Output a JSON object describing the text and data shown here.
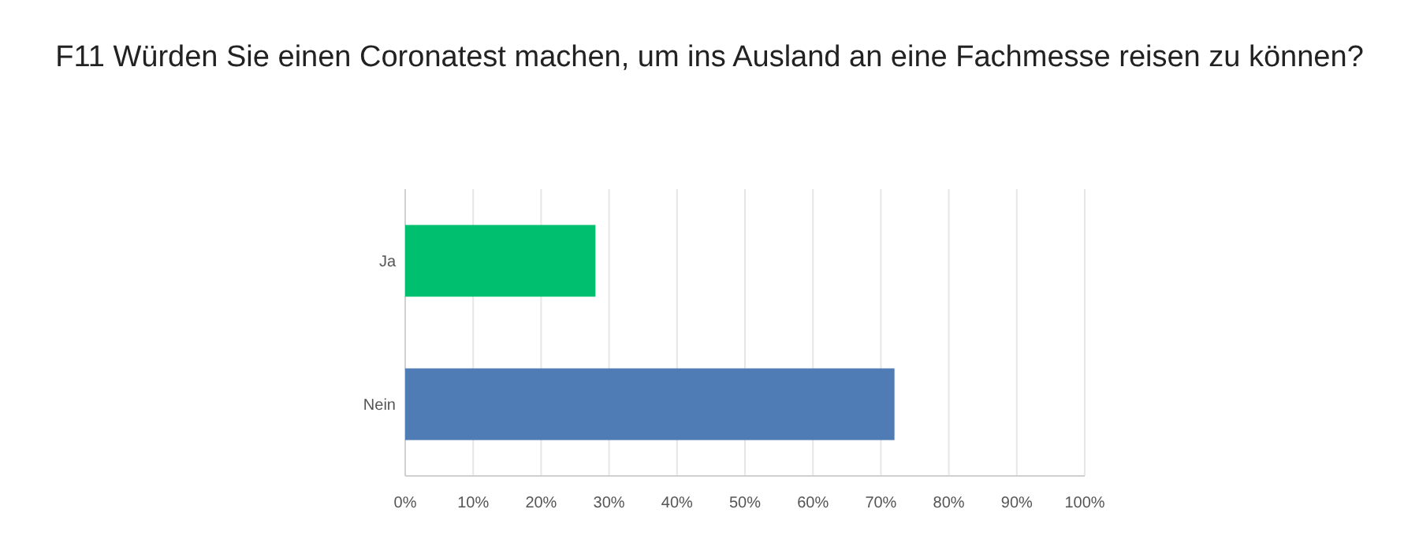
{
  "chart_data": {
    "type": "bar",
    "orientation": "horizontal",
    "title": "F11 Würden Sie einen Coronatest machen, um ins Ausland an eine Fachmesse reisen zu können?",
    "categories": [
      "Ja",
      "Nein"
    ],
    "values": [
      28,
      72
    ],
    "colors": [
      "#00bf6f",
      "#507cb6"
    ],
    "xlim": [
      0,
      100
    ],
    "xticks": [
      {
        "value": 0,
        "label": "0%"
      },
      {
        "value": 10,
        "label": "10%"
      },
      {
        "value": 20,
        "label": "20%"
      },
      {
        "value": 30,
        "label": "30%"
      },
      {
        "value": 40,
        "label": "40%"
      },
      {
        "value": 50,
        "label": "50%"
      },
      {
        "value": 60,
        "label": "60%"
      },
      {
        "value": 70,
        "label": "70%"
      },
      {
        "value": 80,
        "label": "80%"
      },
      {
        "value": 90,
        "label": "90%"
      },
      {
        "value": 100,
        "label": "100%"
      }
    ],
    "grid": "x"
  }
}
